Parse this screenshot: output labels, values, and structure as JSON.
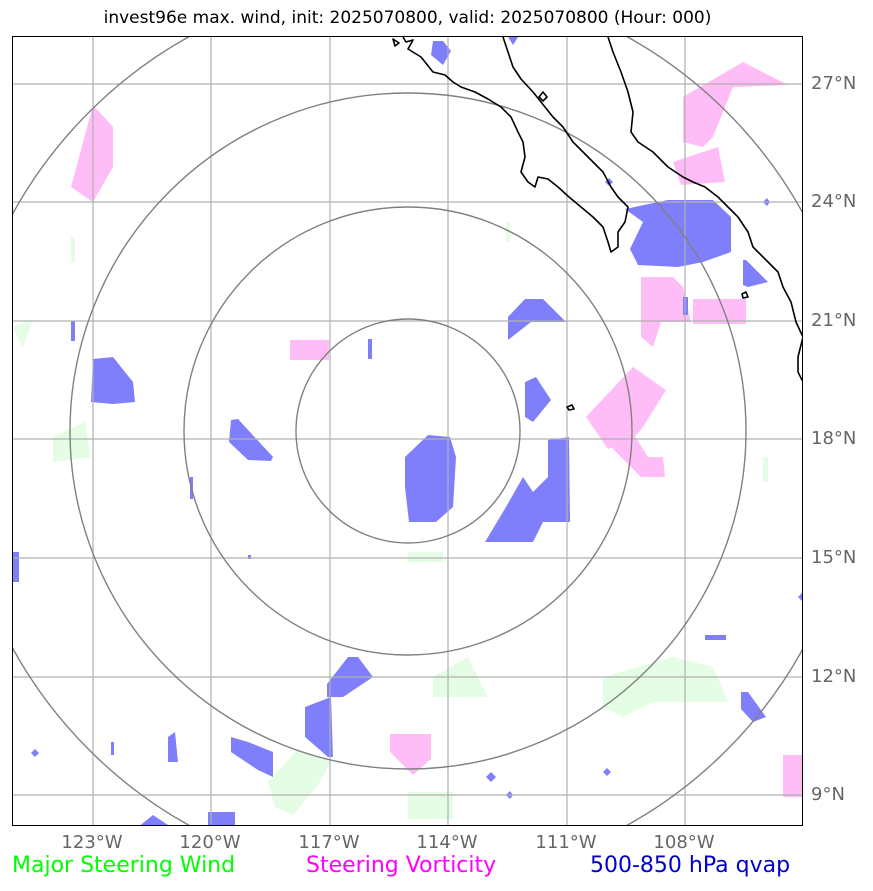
{
  "title": "invest96e max. wind, init: 2025070800, valid: 2025070800 (Hour: 000)",
  "lat_labels": [
    "27°N",
    "24°N",
    "21°N",
    "18°N",
    "15°N",
    "12°N",
    "9°N"
  ],
  "lon_labels": [
    "123°W",
    "120°W",
    "117°W",
    "114°W",
    "111°W",
    "108°W"
  ],
  "legend": {
    "wind": "Major Steering Wind",
    "vorticity": "Steering Vorticity",
    "qvap": "500-850 hPa qvap"
  },
  "colors": {
    "wind": "#00ff00",
    "vorticity": "#ff00ff",
    "qvap": "#0000cc",
    "wind_fill": "#e4fde4",
    "vorticity_fill": "#ffbdf7",
    "qvap_fill": "#7f7ffb",
    "grid": "#b0b0b0",
    "range_rings": "#808080",
    "coastline": "#000000"
  }
}
